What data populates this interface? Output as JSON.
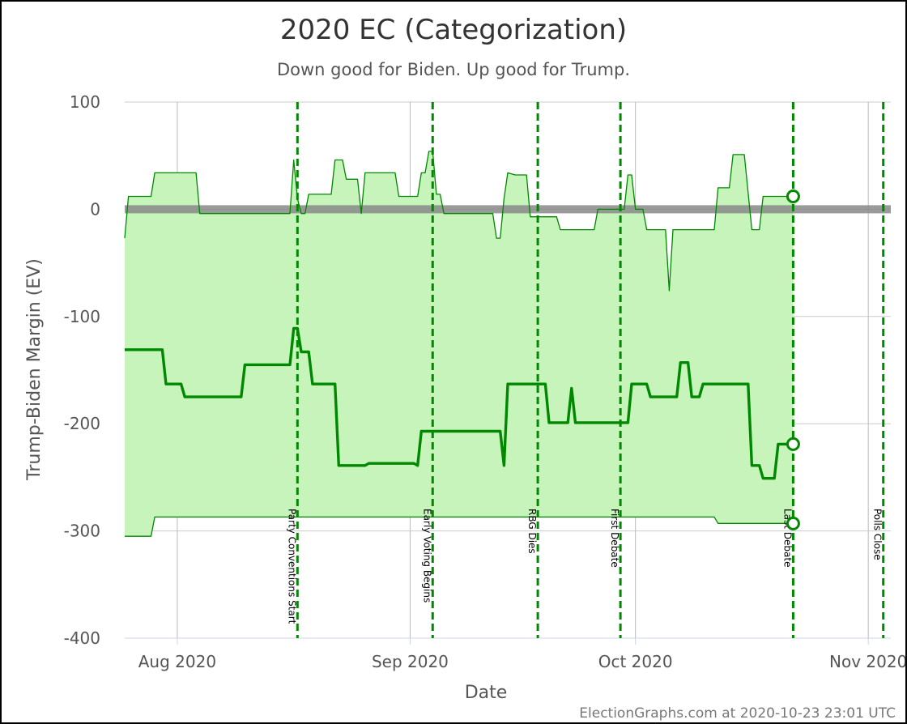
{
  "chart_data": {
    "type": "line",
    "title": "2020 EC (Categorization)",
    "subtitle": "Down good for Biden. Up good for Trump.",
    "xlabel": "Date",
    "ylabel": "Trump-Biden Margin (EV)",
    "credit": "ElectionGraphs.com at 2020-10-23 23:01 UTC",
    "ylim": [
      -400,
      100
    ],
    "yticks": [
      "100",
      "0",
      "-100",
      "-200",
      "-300",
      "-400"
    ],
    "xlim": [
      "2020-07-25",
      "2020-11-04"
    ],
    "xticks": [
      {
        "date": "2020-08-01",
        "label": "Aug 2020"
      },
      {
        "date": "2020-09-01",
        "label": "Sep 2020"
      },
      {
        "date": "2020-10-01",
        "label": "Oct 2020"
      },
      {
        "date": "2020-11-01",
        "label": "Nov 2020"
      }
    ],
    "grid": true,
    "zero_band": true,
    "colors": {
      "fill": "#c6f4bb",
      "line": "#008800",
      "event": "#008800",
      "zero_band": "#888888"
    },
    "events": [
      {
        "date": "2020-08-17",
        "label": "Party Conventions Start"
      },
      {
        "date": "2020-09-04",
        "label": "Early Voting Begins"
      },
      {
        "date": "2020-09-18",
        "label": "RBG Dies"
      },
      {
        "date": "2020-09-29",
        "label": "First Debate"
      },
      {
        "date": "2020-10-22",
        "label": "Last Debate"
      },
      {
        "date": "2020-11-03",
        "label": "Polls Close"
      }
    ],
    "series": [
      {
        "role": "upper",
        "width": 1.3,
        "end_marker": true,
        "points": [
          [
            "2020-07-25",
            -27
          ],
          [
            "2020-07-25.5",
            12
          ],
          [
            "2020-07-28.5",
            12
          ],
          [
            "2020-07-29",
            34
          ],
          [
            "2020-08-03.5",
            34
          ],
          [
            "2020-08-04",
            -4
          ],
          [
            "2020-08-16",
            -4
          ],
          [
            "2020-08-16.5",
            46
          ],
          [
            "2020-08-17",
            10
          ],
          [
            "2020-08-17.5",
            -4
          ],
          [
            "2020-08-18",
            -4
          ],
          [
            "2020-08-18.5",
            14
          ],
          [
            "2020-08-21.5",
            14
          ],
          [
            "2020-08-22",
            46
          ],
          [
            "2020-08-23",
            46
          ],
          [
            "2020-08-23.5",
            28
          ],
          [
            "2020-08-25",
            28
          ],
          [
            "2020-08-25.5",
            -4
          ],
          [
            "2020-08-26",
            34
          ],
          [
            "2020-08-30",
            34
          ],
          [
            "2020-08-30.5",
            12
          ],
          [
            "2020-09-02",
            12
          ],
          [
            "2020-09-02.5",
            34
          ],
          [
            "2020-09-03",
            34
          ],
          [
            "2020-09-03.5",
            54
          ],
          [
            "2020-09-04",
            54
          ],
          [
            "2020-09-04.5",
            14
          ],
          [
            "2020-09-05",
            14
          ],
          [
            "2020-09-05.5",
            -4
          ],
          [
            "2020-09-12",
            -4
          ],
          [
            "2020-09-12.5",
            -27
          ],
          [
            "2020-09-13",
            -27
          ],
          [
            "2020-09-13.5",
            10
          ],
          [
            "2020-09-14",
            34
          ],
          [
            "2020-09-15",
            32
          ],
          [
            "2020-09-16.5",
            32
          ],
          [
            "2020-09-17",
            -7
          ],
          [
            "2020-09-20.5",
            -7
          ],
          [
            "2020-09-21",
            -19
          ],
          [
            "2020-09-25.5",
            -19
          ],
          [
            "2020-09-26",
            0
          ],
          [
            "2020-09-29.5",
            0
          ],
          [
            "2020-09-30",
            32
          ],
          [
            "2020-09-30.5",
            32
          ],
          [
            "2020-10-01",
            0
          ],
          [
            "2020-10-02",
            0
          ],
          [
            "2020-10-02.5",
            -19
          ],
          [
            "2020-10-05",
            -19
          ],
          [
            "2020-10-05.5",
            -76
          ],
          [
            "2020-10-06",
            -19
          ],
          [
            "2020-10-11.5",
            -19
          ],
          [
            "2020-10-12",
            20
          ],
          [
            "2020-10-13.5",
            20
          ],
          [
            "2020-10-14",
            51
          ],
          [
            "2020-10-15.5",
            51
          ],
          [
            "2020-10-16.5",
            -19
          ],
          [
            "2020-10-17.5",
            -19
          ],
          [
            "2020-10-18",
            12
          ],
          [
            "2020-10-22",
            12
          ]
        ]
      },
      {
        "role": "expected",
        "width": 3.4,
        "end_marker": true,
        "points": [
          [
            "2020-07-25",
            -131
          ],
          [
            "2020-07-30",
            -131
          ],
          [
            "2020-07-30.5",
            -163
          ],
          [
            "2020-08-01.5",
            -163
          ],
          [
            "2020-08-02",
            -175
          ],
          [
            "2020-08-09.5",
            -175
          ],
          [
            "2020-08-10",
            -145
          ],
          [
            "2020-08-16",
            -145
          ],
          [
            "2020-08-16.5",
            -111
          ],
          [
            "2020-08-17",
            -111
          ],
          [
            "2020-08-17.5",
            -133
          ],
          [
            "2020-08-18.5",
            -133
          ],
          [
            "2020-08-19",
            -163
          ],
          [
            "2020-08-22",
            -163
          ],
          [
            "2020-08-22.5",
            -239
          ],
          [
            "2020-08-26",
            -239
          ],
          [
            "2020-08-26.5",
            -237
          ],
          [
            "2020-09-01.5",
            -237
          ],
          [
            "2020-09-02",
            -239
          ],
          [
            "2020-09-02.5",
            -207
          ],
          [
            "2020-09-13",
            -207
          ],
          [
            "2020-09-13.5",
            -239
          ],
          [
            "2020-09-14",
            -163
          ],
          [
            "2020-09-19",
            -163
          ],
          [
            "2020-09-19.5",
            -199
          ],
          [
            "2020-09-22",
            -199
          ],
          [
            "2020-09-22.5",
            -167
          ],
          [
            "2020-09-23",
            -199
          ],
          [
            "2020-09-30",
            -199
          ],
          [
            "2020-09-30.5",
            -163
          ],
          [
            "2020-10-02.5",
            -163
          ],
          [
            "2020-10-03",
            -175
          ],
          [
            "2020-10-06.5",
            -175
          ],
          [
            "2020-10-07",
            -143
          ],
          [
            "2020-10-08",
            -143
          ],
          [
            "2020-10-08.5",
            -175
          ],
          [
            "2020-10-09.5",
            -175
          ],
          [
            "2020-10-10",
            -163
          ],
          [
            "2020-10-16",
            -163
          ],
          [
            "2020-10-16.5",
            -239
          ],
          [
            "2020-10-17.5",
            -239
          ],
          [
            "2020-10-18",
            -251
          ],
          [
            "2020-10-19.5",
            -251
          ],
          [
            "2020-10-20",
            -219
          ],
          [
            "2020-10-22",
            -219
          ]
        ]
      },
      {
        "role": "lower",
        "width": 1.3,
        "end_marker": true,
        "points": [
          [
            "2020-07-25",
            -305
          ],
          [
            "2020-07-28.5",
            -305
          ],
          [
            "2020-07-29",
            -287
          ],
          [
            "2020-10-11.5",
            -287
          ],
          [
            "2020-10-12",
            -293
          ],
          [
            "2020-10-22",
            -293
          ]
        ]
      }
    ]
  }
}
